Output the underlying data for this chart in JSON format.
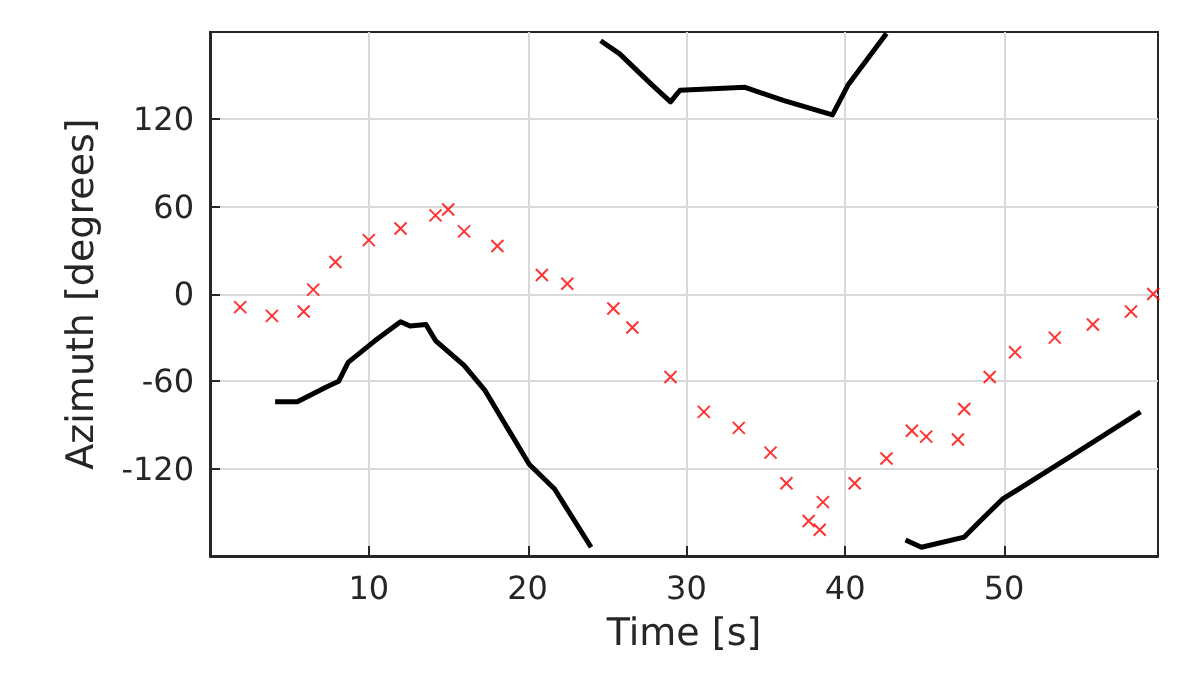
{
  "chart_data": {
    "type": "scatter",
    "xlabel": "Time [s]",
    "ylabel": "Azimuth [degrees]",
    "xlim": [
      0,
      59.7
    ],
    "ylim": [
      -180,
      180
    ],
    "xticks": [
      10,
      20,
      30,
      40,
      50
    ],
    "yticks": [
      -120,
      -60,
      0,
      60,
      120
    ],
    "grid": true,
    "series": [
      {
        "type": "line",
        "color": "#000000",
        "marker": "none",
        "line_style": "solid",
        "x": [
          4.1,
          5.5,
          7.3,
          8.1,
          8.7,
          10.4,
          12.0,
          12.6,
          13.6,
          14.2,
          16.0,
          17.3,
          20.1,
          21.7,
          24.0,
          24.3,
          24.6,
          25.8,
          27.8,
          29.0,
          29.6,
          33.7,
          36.1,
          39.2,
          40.2,
          42.6,
          43.2,
          43.8,
          44.8,
          47.5,
          48.5,
          49.9,
          54.0,
          58.6
        ],
        "values": [
          -74,
          -74,
          -64,
          -60,
          -47,
          -32,
          -19,
          -22,
          -21,
          -32,
          -49,
          -66,
          -117,
          -134,
          -174,
          null,
          174,
          165,
          144,
          132,
          140,
          142,
          133,
          123,
          144,
          179,
          null,
          -169,
          -174,
          -167,
          -156,
          -141,
          -113,
          -81
        ]
      },
      {
        "color": "#ff0000",
        "marker": "cross",
        "x": [
          1.9,
          3.9,
          5.9,
          6.5,
          7.9,
          10.0,
          12.0,
          14.2,
          15.0,
          16.0,
          18.1,
          20.9,
          22.5,
          25.4,
          26.6,
          29.0,
          31.1,
          33.3,
          35.3,
          36.3,
          37.7,
          38.4,
          38.6,
          40.6,
          42.6,
          44.2,
          45.1,
          47.1,
          47.5,
          49.1,
          50.7,
          53.2,
          55.6,
          58.0,
          59.4
        ],
        "values": [
          -9,
          -15,
          -12,
          3,
          22,
          37,
          45,
          54,
          58,
          43,
          33,
          13,
          7,
          -10,
          -23,
          -57,
          -81,
          -92,
          -109,
          -130,
          -156,
          -162,
          -143,
          -130,
          -113,
          -94,
          -98,
          -100,
          -79,
          -57,
          -40,
          -30,
          -21,
          -12,
          0
        ]
      }
    ]
  }
}
